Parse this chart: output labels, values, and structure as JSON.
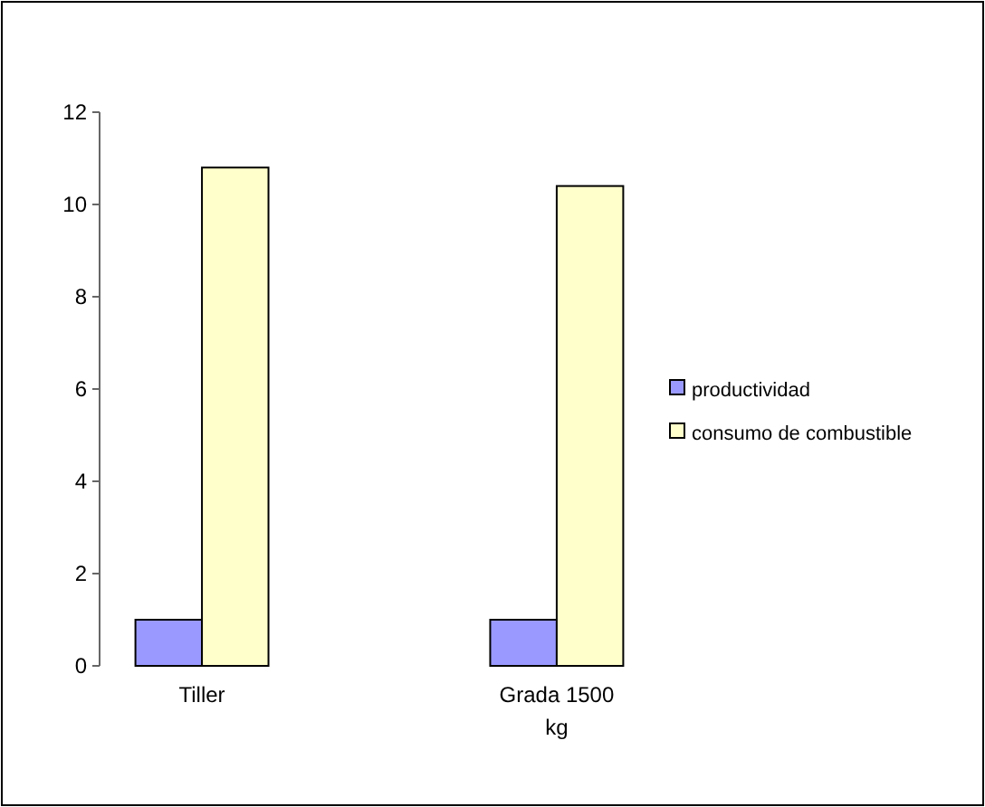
{
  "chart_data": {
    "type": "bar",
    "categories": [
      "Tiller",
      null,
      "Grada 1500 kg"
    ],
    "series": [
      {
        "name": "productividad",
        "color": "#9999ff",
        "values": [
          1,
          0,
          1
        ]
      },
      {
        "name": "consumo de combustible",
        "color": "#ffffcc",
        "values": [
          10.8,
          0,
          10.4
        ]
      }
    ],
    "ylim": [
      0,
      12
    ],
    "yticks": [
      0,
      2,
      4,
      6,
      8,
      10,
      12
    ],
    "grid": false,
    "legend": "right"
  }
}
